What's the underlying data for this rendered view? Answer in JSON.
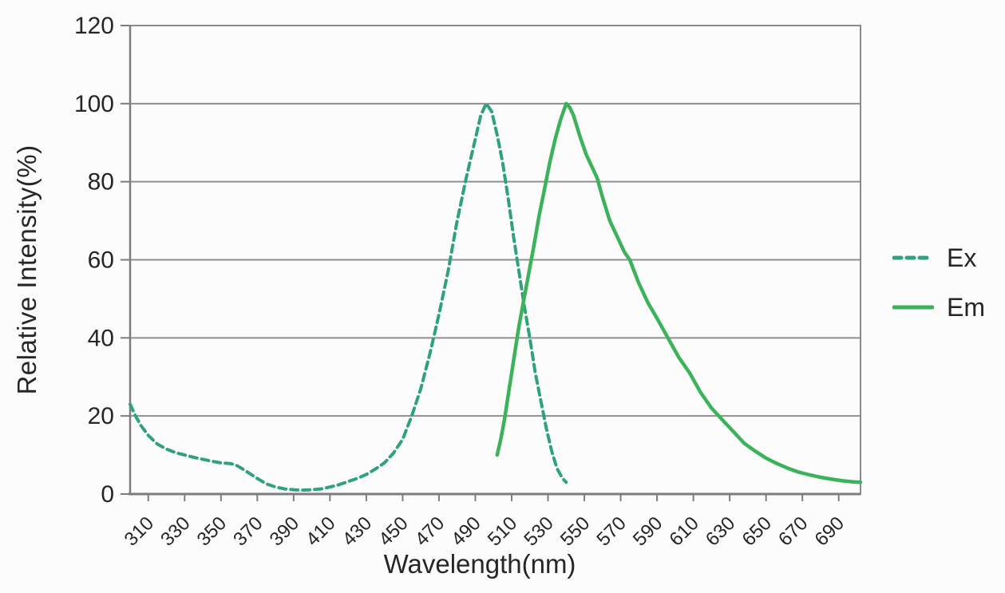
{
  "chart_data": {
    "type": "line",
    "title": "",
    "xlabel": "Wavelength(nm)",
    "ylabel": "Relative Intensity(%)",
    "xlim": [
      300,
      702
    ],
    "ylim": [
      0,
      120
    ],
    "x_ticks": [
      310,
      330,
      350,
      370,
      390,
      410,
      430,
      450,
      470,
      490,
      510,
      530,
      550,
      570,
      590,
      610,
      630,
      650,
      670,
      690
    ],
    "y_ticks": [
      0,
      20,
      40,
      60,
      80,
      100,
      120
    ],
    "grid": "horizontal-only",
    "legend_position": "right-outside",
    "axis_color": "#7d7d7d",
    "grid_color": "#8f8f8f",
    "series": [
      {
        "name": "Ex",
        "style": "dashed",
        "color": "#2fa377",
        "peak_nm": 496,
        "points": [
          [
            300,
            23
          ],
          [
            303,
            20
          ],
          [
            306,
            17.5
          ],
          [
            310,
            15
          ],
          [
            315,
            12.8
          ],
          [
            320,
            11.5
          ],
          [
            325,
            10.6
          ],
          [
            330,
            10
          ],
          [
            335,
            9.4
          ],
          [
            340,
            8.9
          ],
          [
            345,
            8.4
          ],
          [
            350,
            8
          ],
          [
            355,
            7.8
          ],
          [
            358,
            7.5
          ],
          [
            362,
            6.4
          ],
          [
            366,
            5.2
          ],
          [
            370,
            4
          ],
          [
            375,
            2.6
          ],
          [
            380,
            1.8
          ],
          [
            385,
            1.3
          ],
          [
            390,
            1.1
          ],
          [
            395,
            1
          ],
          [
            400,
            1.1
          ],
          [
            405,
            1.3
          ],
          [
            410,
            1.8
          ],
          [
            415,
            2.4
          ],
          [
            420,
            3.2
          ],
          [
            425,
            4
          ],
          [
            430,
            5
          ],
          [
            435,
            6.4
          ],
          [
            440,
            8
          ],
          [
            445,
            10.5
          ],
          [
            450,
            14
          ],
          [
            455,
            20
          ],
          [
            460,
            27
          ],
          [
            465,
            36
          ],
          [
            470,
            46
          ],
          [
            475,
            57
          ],
          [
            480,
            70
          ],
          [
            485,
            81
          ],
          [
            490,
            91
          ],
          [
            493,
            97
          ],
          [
            496,
            100
          ],
          [
            499,
            98
          ],
          [
            502,
            92
          ],
          [
            505,
            85
          ],
          [
            508,
            76
          ],
          [
            511,
            66
          ],
          [
            514,
            57
          ],
          [
            517,
            48
          ],
          [
            520,
            40
          ],
          [
            523,
            31
          ],
          [
            526,
            24
          ],
          [
            529,
            17
          ],
          [
            532,
            11
          ],
          [
            535,
            6.5
          ],
          [
            538,
            4
          ],
          [
            540,
            3
          ]
        ]
      },
      {
        "name": "Em",
        "style": "solid",
        "color": "#3cb25b",
        "peak_nm": 540,
        "points": [
          [
            502,
            10
          ],
          [
            504,
            14
          ],
          [
            506,
            19
          ],
          [
            508,
            25
          ],
          [
            510,
            31
          ],
          [
            512,
            37
          ],
          [
            514,
            43
          ],
          [
            516,
            48
          ],
          [
            518,
            53
          ],
          [
            520,
            58
          ],
          [
            522,
            63
          ],
          [
            525,
            71
          ],
          [
            528,
            78
          ],
          [
            531,
            85
          ],
          [
            534,
            91
          ],
          [
            537,
            96
          ],
          [
            540,
            100
          ],
          [
            542,
            99
          ],
          [
            544,
            97
          ],
          [
            546,
            94
          ],
          [
            548,
            91
          ],
          [
            551,
            87
          ],
          [
            554,
            84
          ],
          [
            557,
            81
          ],
          [
            560,
            76
          ],
          [
            564,
            70
          ],
          [
            568,
            66
          ],
          [
            572,
            62
          ],
          [
            575,
            60
          ],
          [
            580,
            54
          ],
          [
            585,
            49
          ],
          [
            590,
            45
          ],
          [
            596,
            40
          ],
          [
            602,
            35
          ],
          [
            608,
            31
          ],
          [
            614,
            26
          ],
          [
            620,
            22
          ],
          [
            626,
            19
          ],
          [
            632,
            16
          ],
          [
            638,
            13
          ],
          [
            644,
            11
          ],
          [
            650,
            9.2
          ],
          [
            656,
            7.8
          ],
          [
            662,
            6.6
          ],
          [
            668,
            5.6
          ],
          [
            674,
            4.9
          ],
          [
            680,
            4.3
          ],
          [
            686,
            3.8
          ],
          [
            692,
            3.4
          ],
          [
            698,
            3.1
          ],
          [
            702,
            3
          ]
        ]
      }
    ]
  }
}
